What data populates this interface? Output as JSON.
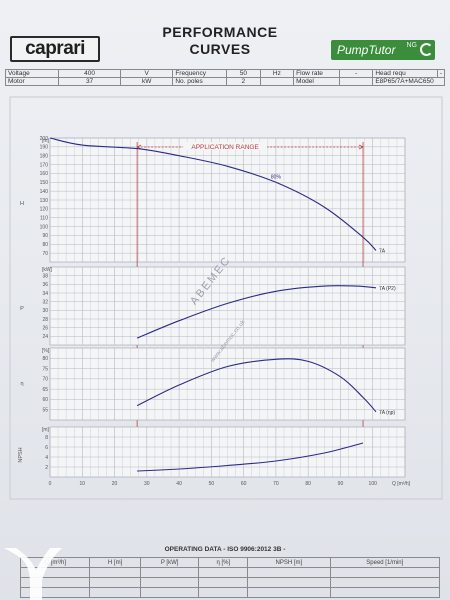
{
  "header": {
    "brand_left": "caprari",
    "title_line1": "PERFORMANCE",
    "title_line2": "CURVES",
    "brand_right": "PumpTutor",
    "brand_right_suffix": "NG"
  },
  "spec_rows": [
    [
      "Voltage",
      "400",
      "V",
      "Frequency",
      "50",
      "Hz",
      "Flow rate",
      "-",
      "Head requ",
      "-"
    ],
    [
      "Motor",
      "37",
      "kW",
      "No. poles",
      "2",
      "",
      "Model",
      "",
      "E8P65/7A+MAC650",
      ""
    ]
  ],
  "chart_data": [
    {
      "type": "line",
      "panel": "head",
      "yunit": "[m]",
      "ylabel": "H",
      "ylim": [
        60,
        200
      ],
      "yticks": [
        70,
        80,
        90,
        100,
        110,
        120,
        130,
        140,
        150,
        160,
        170,
        180,
        190,
        200
      ],
      "xlim": [
        0,
        110
      ],
      "range_label": "APPLICATION RANGE",
      "range": [
        27,
        97
      ],
      "series": [
        {
          "name": "7A",
          "x": [
            0,
            10,
            27,
            40,
            55,
            70,
            85,
            97,
            101
          ],
          "y": [
            200,
            192,
            188,
            180,
            168,
            150,
            122,
            88,
            73
          ]
        }
      ],
      "annotations": [
        {
          "text": "80%",
          "x": 70,
          "y": 152
        }
      ]
    },
    {
      "type": "line",
      "panel": "power",
      "yunit": "[kW]",
      "ylabel": "P",
      "ylim": [
        22,
        40
      ],
      "yticks": [
        24,
        26,
        28,
        30,
        32,
        34,
        36,
        38
      ],
      "xlim": [
        0,
        110
      ],
      "series": [
        {
          "name": "7A (P2)",
          "x": [
            27,
            40,
            55,
            70,
            85,
            95,
            101
          ],
          "y": [
            23.6,
            27.6,
            31.6,
            34.4,
            35.6,
            35.6,
            35.2
          ]
        }
      ]
    },
    {
      "type": "line",
      "panel": "efficiency",
      "yunit": "[%]",
      "ylabel": "η",
      "ylim": [
        50,
        85
      ],
      "yticks": [
        55,
        60,
        65,
        70,
        75,
        80
      ],
      "xlim": [
        0,
        110
      ],
      "series": [
        {
          "name": "7A (ηp)",
          "x": [
            27,
            40,
            55,
            70,
            80,
            90,
            97,
            101
          ],
          "y": [
            57,
            67,
            76,
            79.5,
            78.5,
            71,
            61,
            54
          ]
        }
      ]
    },
    {
      "type": "line",
      "panel": "npsh",
      "yunit": "[m]",
      "ylabel": "NPSH",
      "ylim": [
        0,
        10
      ],
      "yticks": [
        2,
        4,
        6,
        8
      ],
      "xlim": [
        0,
        110
      ],
      "xticks": [
        0,
        10,
        20,
        30,
        40,
        50,
        60,
        70,
        80,
        90,
        100
      ],
      "xlabel": "Q [m³/h]",
      "series": [
        {
          "name": "",
          "x": [
            27,
            40,
            55,
            70,
            85,
            97
          ],
          "y": [
            1.2,
            1.6,
            2.3,
            3.2,
            4.8,
            6.8
          ]
        }
      ]
    }
  ],
  "operating": {
    "title": "OPERATING DATA - ISO 9906:2012 3B -",
    "headers": [
      "Q [m³/h]",
      "H [m]",
      "P [kW]",
      "η [%]",
      "NPSH [m]",
      "Speed [1/min]"
    ]
  },
  "watermark": "ABEMEC",
  "watermark_sub": "www.abemec.co.uk",
  "colors": {
    "curve": "#2b2b86",
    "range": "#c23a3a",
    "grid": "#b5b8bf",
    "brand_green": "#3a8d3a"
  }
}
